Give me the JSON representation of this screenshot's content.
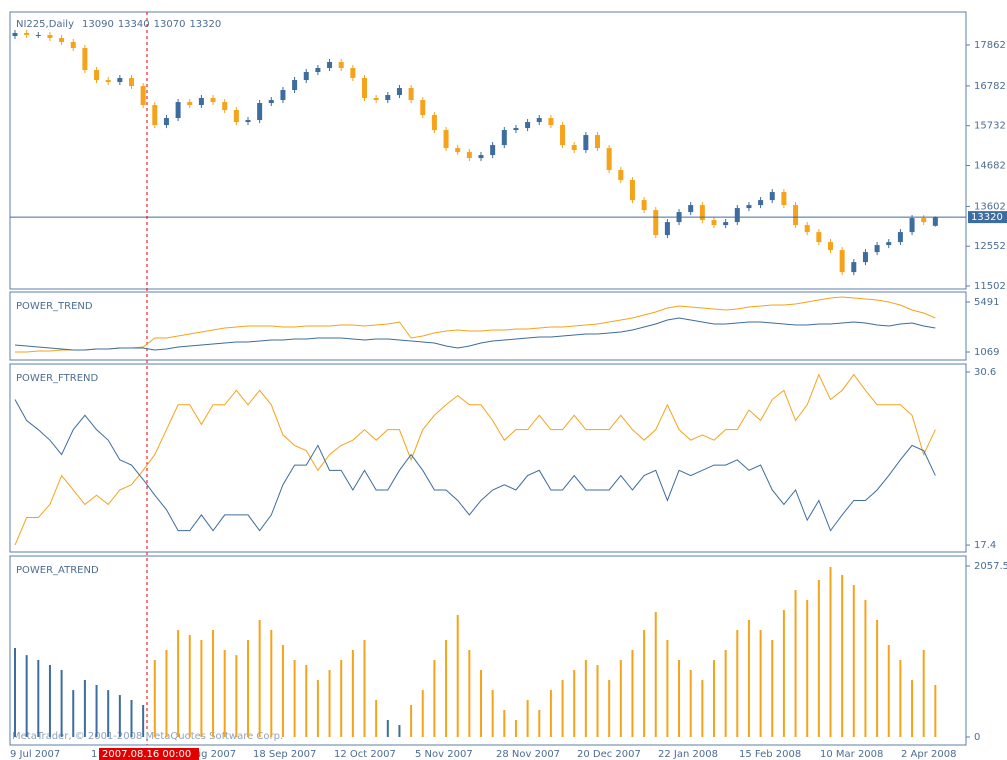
{
  "chart_data": [
    {
      "type": "candlestick",
      "title": "NI225,Daily",
      "open": [
        18100,
        18179,
        18126,
        18126,
        18047,
        17941,
        17783,
        17202,
        16938,
        16885,
        16991,
        16780,
        16278,
        15750,
        15935,
        16357,
        16278,
        16463,
        16357,
        16146,
        15829,
        15882,
        16331,
        16410,
        16674,
        16938,
        17149,
        17255,
        17413,
        17255,
        16991,
        16463,
        16410,
        16542,
        16727,
        16410,
        16014,
        15618,
        15143,
        15037,
        14879,
        14958,
        15222,
        15618,
        15671,
        15829,
        15935,
        15750,
        15222,
        15090,
        15486,
        15143,
        14562,
        14298,
        13770,
        13506,
        12846,
        13189,
        13453,
        13638,
        13242,
        13110,
        13189,
        13559,
        13638,
        13770,
        13981,
        13638,
        13110,
        12925,
        12661,
        12450,
        11869,
        12133,
        12397,
        12582,
        12661,
        12925,
        13295,
        13090
      ],
      "high": [
        18259,
        18259,
        18206,
        18206,
        18127,
        18021,
        17863,
        17282,
        17018,
        17071,
        17071,
        16860,
        16358,
        16015,
        16437,
        16437,
        16543,
        16543,
        16437,
        16226,
        15962,
        16411,
        16490,
        16754,
        17018,
        17229,
        17335,
        17493,
        17493,
        17335,
        17071,
        16543,
        16622,
        16807,
        16807,
        16490,
        16094,
        15698,
        15223,
        15117,
        15038,
        15302,
        15698,
        15751,
        15909,
        16015,
        16015,
        15830,
        15302,
        15566,
        15566,
        15223,
        14642,
        14378,
        13850,
        13586,
        13269,
        13533,
        13718,
        13718,
        13322,
        13269,
        13639,
        13718,
        13850,
        14061,
        14061,
        13718,
        13190,
        13005,
        12741,
        12530,
        12213,
        12477,
        12662,
        12741,
        13005,
        13375,
        13375,
        13340
      ],
      "low": [
        18020,
        18046,
        18046,
        17967,
        17861,
        17703,
        17122,
        16858,
        16805,
        16805,
        16700,
        16198,
        15670,
        15670,
        15855,
        16198,
        16198,
        16277,
        16066,
        15749,
        15749,
        15802,
        16251,
        16330,
        16594,
        16858,
        17069,
        17175,
        17175,
        16911,
        16383,
        16330,
        16330,
        16462,
        16330,
        15934,
        15538,
        15063,
        14957,
        14799,
        14799,
        14878,
        15142,
        15538,
        15591,
        15749,
        15670,
        15142,
        15010,
        15010,
        15063,
        14482,
        14218,
        13690,
        13426,
        12766,
        12766,
        13109,
        13373,
        13162,
        13030,
        13030,
        13109,
        13479,
        13558,
        13690,
        13558,
        13030,
        12845,
        12581,
        12370,
        11789,
        11789,
        12053,
        12317,
        12502,
        12581,
        12845,
        13109,
        13070
      ],
      "close": [
        18179,
        18126,
        18126,
        18047,
        17941,
        17783,
        17202,
        16938,
        16885,
        16991,
        16780,
        16278,
        15750,
        15935,
        16357,
        16278,
        16463,
        16357,
        16146,
        15829,
        15882,
        16331,
        16410,
        16674,
        16938,
        17149,
        17255,
        17413,
        17255,
        16991,
        16463,
        16410,
        16542,
        16727,
        16410,
        16014,
        15618,
        15143,
        15037,
        14879,
        14958,
        15222,
        15618,
        15671,
        15829,
        15935,
        15750,
        15222,
        15090,
        15486,
        15143,
        14562,
        14298,
        13770,
        13506,
        12846,
        13189,
        13453,
        13638,
        13242,
        13110,
        13189,
        13559,
        13638,
        13770,
        13981,
        13638,
        13110,
        12925,
        12661,
        12450,
        11869,
        12133,
        12397,
        12582,
        12661,
        12925,
        13295,
        13189,
        13320
      ],
      "up_color": "#3d6c9e",
      "down_color": "#f5a31a",
      "ylim": [
        11423,
        18733
      ],
      "yticks": [
        17862,
        16782,
        15732,
        14682,
        13602,
        12552,
        11502
      ],
      "x_labels": [
        "9 Jul 2007",
        "1 Aug 2007",
        "24 Aug 2007",
        "18 Sep 2007",
        "12 Oct 2007",
        "5 Nov 2007",
        "28 Nov 2007",
        "20 Dec 2007",
        "22 Jan 2008",
        "15 Feb 2008",
        "10 Mar 2008",
        "2 Apr 2008"
      ],
      "crosshair_label": "2007.08.16 00:00",
      "copyright": "MetaTrader, © 2001-2008 MetaQuotes Software Corp."
    },
    {
      "type": "line",
      "title": "POWER_TREND",
      "ylim": [
        362,
        6375
      ],
      "yticks": [
        1069,
        5491
      ],
      "series": [
        {
          "color": "#f5a31a",
          "values": [
            1069,
            1069,
            1157,
            1157,
            1246,
            1246,
            1246,
            1334,
            1334,
            1423,
            1423,
            1511,
            2307,
            2307,
            2483,
            2660,
            2837,
            3014,
            3191,
            3279,
            3367,
            3367,
            3367,
            3279,
            3279,
            3367,
            3367,
            3367,
            3456,
            3456,
            3367,
            3456,
            3544,
            3721,
            2307,
            2483,
            2749,
            2925,
            3014,
            2925,
            2925,
            3014,
            3014,
            3102,
            3102,
            3191,
            3279,
            3279,
            3367,
            3456,
            3544,
            3721,
            3898,
            4075,
            4340,
            4605,
            4959,
            5135,
            5047,
            4959,
            4870,
            4782,
            4870,
            5047,
            5135,
            5224,
            5224,
            5312,
            5489,
            5666,
            5843,
            5931,
            5843,
            5754,
            5666,
            5489,
            5224,
            4782,
            4517,
            4075
          ]
        },
        {
          "color": "#3d6c9e",
          "values": [
            1688,
            1599,
            1511,
            1423,
            1334,
            1246,
            1246,
            1334,
            1334,
            1423,
            1423,
            1423,
            1246,
            1334,
            1511,
            1599,
            1688,
            1776,
            1865,
            1953,
            1953,
            2041,
            2130,
            2130,
            2218,
            2218,
            2307,
            2307,
            2307,
            2218,
            2130,
            2218,
            2218,
            2130,
            2041,
            1953,
            1865,
            1599,
            1423,
            1599,
            1865,
            2041,
            2130,
            2218,
            2307,
            2395,
            2395,
            2483,
            2572,
            2660,
            2660,
            2749,
            2837,
            3014,
            3279,
            3544,
            3898,
            4075,
            3898,
            3721,
            3544,
            3544,
            3633,
            3721,
            3721,
            3633,
            3544,
            3456,
            3456,
            3544,
            3544,
            3633,
            3721,
            3633,
            3456,
            3367,
            3544,
            3633,
            3367,
            3191
          ]
        }
      ]
    },
    {
      "type": "line",
      "title": "POWER_FTREND",
      "ylim": [
        16.87,
        31.21
      ],
      "yticks": [
        30.6,
        17.4
      ],
      "series": [
        {
          "color": "#f5a31a",
          "values": [
            17.4,
            19.5,
            19.5,
            20.5,
            22.7,
            21.6,
            20.5,
            21.2,
            20.5,
            21.6,
            22.0,
            23.1,
            24.3,
            26.2,
            28.1,
            28.1,
            26.6,
            28.1,
            28.1,
            29.2,
            28.1,
            29.2,
            28.1,
            25.8,
            25.0,
            24.6,
            23.1,
            24.3,
            25.0,
            25.4,
            26.2,
            25.4,
            26.2,
            26.2,
            23.9,
            26.2,
            27.3,
            28.1,
            28.8,
            28.1,
            28.1,
            26.9,
            25.4,
            26.2,
            26.2,
            27.3,
            26.2,
            26.2,
            27.3,
            26.2,
            26.2,
            26.2,
            27.3,
            26.2,
            25.4,
            26.2,
            28.1,
            26.2,
            25.4,
            25.8,
            25.4,
            26.2,
            26.2,
            27.7,
            26.9,
            28.5,
            29.2,
            26.9,
            28.1,
            30.4,
            28.5,
            29.2,
            30.4,
            29.2,
            28.1,
            28.1,
            28.1,
            27.3,
            24.3,
            26.2
          ]
        },
        {
          "color": "#3d6c9e",
          "values": [
            28.5,
            26.9,
            26.2,
            25.4,
            24.3,
            26.2,
            27.3,
            26.2,
            25.4,
            23.9,
            23.5,
            22.4,
            21.2,
            20.1,
            18.5,
            18.5,
            19.7,
            18.5,
            19.7,
            19.7,
            19.7,
            18.5,
            19.7,
            22.0,
            23.5,
            23.5,
            25.0,
            23.1,
            23.1,
            21.6,
            23.1,
            21.6,
            21.6,
            23.1,
            24.3,
            23.1,
            21.6,
            21.6,
            20.8,
            19.7,
            20.8,
            21.6,
            22.0,
            21.6,
            22.7,
            23.1,
            21.6,
            21.6,
            22.7,
            21.6,
            21.6,
            21.6,
            22.7,
            21.6,
            22.7,
            23.1,
            20.8,
            23.1,
            22.7,
            23.1,
            23.5,
            23.5,
            23.9,
            23.1,
            23.5,
            21.6,
            20.5,
            21.6,
            19.3,
            20.8,
            18.5,
            19.7,
            20.8,
            20.8,
            21.6,
            22.7,
            23.9,
            25.0,
            24.6,
            22.7
          ]
        }
      ]
    },
    {
      "type": "bar",
      "title": "POWER_ATREND",
      "ylim": [
        -96,
        2178
      ],
      "yticks": [
        0,
        2057.5
      ],
      "values": [
        1071,
        986,
        926,
        866,
        806,
        565,
        686,
        626,
        565,
        505,
        445,
        385,
        926,
        1047,
        1287,
        1227,
        1167,
        1287,
        1047,
        986,
        1167,
        1408,
        1287,
        1107,
        926,
        866,
        686,
        806,
        926,
        1047,
        1167,
        445,
        205,
        144,
        385,
        565,
        926,
        1167,
        1468,
        1047,
        806,
        565,
        325,
        205,
        445,
        325,
        565,
        686,
        806,
        926,
        866,
        686,
        926,
        1047,
        1287,
        1504,
        1167,
        926,
        806,
        686,
        926,
        1047,
        1287,
        1408,
        1287,
        1167,
        1528,
        1768,
        1648,
        1889,
        2045,
        1949,
        1829,
        1648,
        1408,
        1107,
        926,
        686,
        1047,
        626
      ],
      "colors": [
        "#3d6c9e",
        "#3d6c9e",
        "#3d6c9e",
        "#3d6c9e",
        "#3d6c9e",
        "#3d6c9e",
        "#3d6c9e",
        "#3d6c9e",
        "#3d6c9e",
        "#3d6c9e",
        "#3d6c9e",
        "#3d6c9e",
        "#f5a31a",
        "#f5a31a",
        "#f5a31a",
        "#f5a31a",
        "#f5a31a",
        "#f5a31a",
        "#f5a31a",
        "#f5a31a",
        "#f5a31a",
        "#f5a31a",
        "#f5a31a",
        "#f5a31a",
        "#f5a31a",
        "#f5a31a",
        "#f5a31a",
        "#f5a31a",
        "#f5a31a",
        "#f5a31a",
        "#f5a31a",
        "#f5a31a",
        "#3d6c9e",
        "#3d6c9e",
        "#f5a31a",
        "#f5a31a",
        "#f5a31a",
        "#f5a31a",
        "#f5a31a",
        "#f5a31a",
        "#f5a31a",
        "#f5a31a",
        "#f5a31a",
        "#f5a31a",
        "#f5a31a",
        "#f5a31a",
        "#f5a31a",
        "#f5a31a",
        "#f5a31a",
        "#f5a31a",
        "#f5a31a",
        "#f5a31a",
        "#f5a31a",
        "#f5a31a",
        "#f5a31a",
        "#f5a31a",
        "#f5a31a",
        "#f5a31a",
        "#f5a31a",
        "#f5a31a",
        "#f5a31a",
        "#f5a31a",
        "#f5a31a",
        "#f5a31a",
        "#f5a31a",
        "#f5a31a",
        "#f5a31a",
        "#f5a31a",
        "#f5a31a",
        "#f5a31a",
        "#f5a31a",
        "#f5a31a",
        "#f5a31a",
        "#f5a31a",
        "#f5a31a",
        "#f5a31a",
        "#f5a31a",
        "#f5a31a",
        "#f5a31a",
        "#f5a31a"
      ]
    }
  ]
}
